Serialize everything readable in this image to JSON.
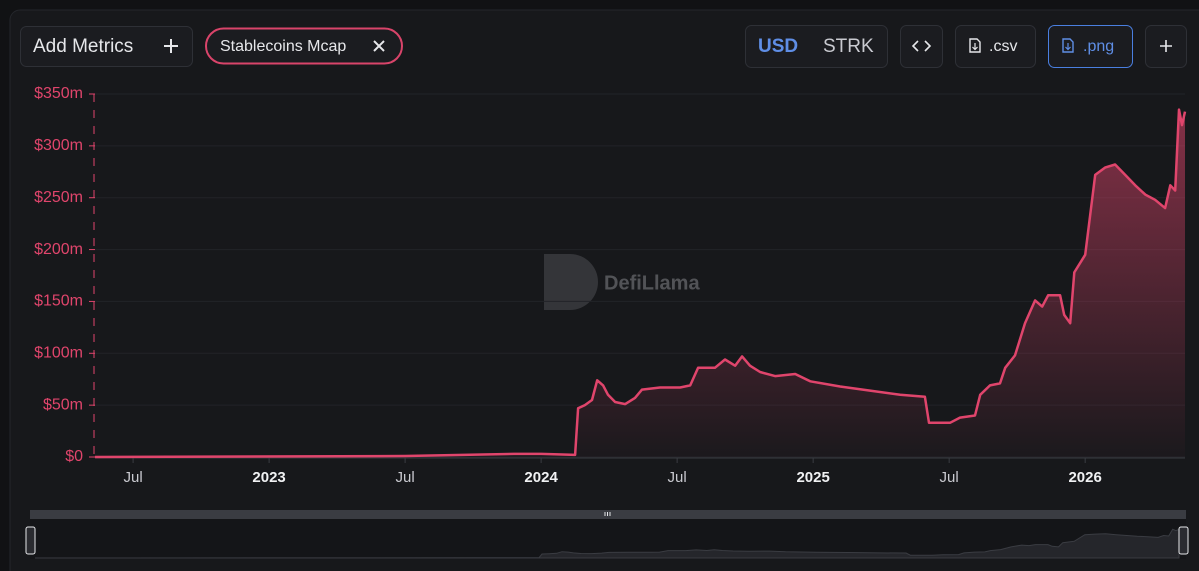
{
  "toolbar": {
    "add_metrics": "Add Metrics",
    "metric_chip": "Stablecoins Mcap",
    "currency_active": "USD",
    "currency_other": "STRK",
    "csv": ".csv",
    "png": ".png"
  },
  "watermark": "DefiLlama",
  "chart_data": {
    "type": "area",
    "color": "#e0456c",
    "grid": true,
    "x": [
      2022.36,
      2023.5,
      2023.9,
      2024.0,
      2024.125,
      2024.136,
      2024.161,
      2024.187,
      2024.206,
      2024.228,
      2024.246,
      2024.272,
      2024.309,
      2024.345,
      2024.371,
      2024.437,
      2024.511,
      2024.548,
      2024.577,
      2024.639,
      2024.676,
      2024.713,
      2024.739,
      2024.768,
      2024.805,
      2024.86,
      2024.934,
      2024.989,
      2025.099,
      2025.209,
      2025.32,
      2025.411,
      2025.426,
      2025.503,
      2025.54,
      2025.595,
      2025.614,
      2025.65,
      2025.687,
      2025.706,
      2025.742,
      2025.779,
      2025.816,
      2025.842,
      2025.864,
      2025.908,
      2025.923,
      2025.945,
      2025.96,
      2026.0,
      2026.037,
      2026.073,
      2026.11,
      2026.147,
      2026.184,
      2026.221,
      2026.257,
      2026.294,
      2026.313,
      2026.331,
      2026.345,
      2026.356,
      2026.367
    ],
    "series": [
      {
        "name": "Stablecoins Mcap",
        "color": "#e0456c",
        "values": [
          0,
          1,
          3,
          3,
          2,
          47,
          50,
          55,
          74,
          69,
          60,
          53,
          51,
          57,
          65,
          67,
          67,
          69,
          86,
          86,
          94,
          88,
          97,
          88,
          82,
          78,
          80,
          73,
          68,
          64,
          60,
          58,
          33,
          33,
          38,
          40,
          60,
          69,
          71,
          86,
          98,
          129,
          151,
          145,
          156,
          156,
          137,
          129,
          178,
          195,
          272,
          279,
          282,
          272,
          262,
          253,
          248,
          240,
          262,
          257,
          335,
          320,
          333
        ]
      }
    ],
    "xlim": [
      2022.36,
      2026.367
    ],
    "xticks": [
      {
        "value": 2022.5,
        "label": "Jul"
      },
      2023,
      {
        "value": 2023.5,
        "label": "Jul"
      },
      2024,
      {
        "value": 2024.5,
        "label": "Jul"
      },
      2025,
      {
        "value": 2025.5,
        "label": "Jul"
      },
      2026
    ],
    "ylim": [
      0,
      350
    ],
    "yticks": [
      {
        "value": 0,
        "label": "$0"
      },
      {
        "value": 50,
        "label": "$50m"
      },
      {
        "value": 100,
        "label": "$100m"
      },
      {
        "value": 150,
        "label": "$150m"
      },
      {
        "value": 200,
        "label": "$200m"
      },
      {
        "value": 250,
        "label": "$250m"
      },
      {
        "value": 300,
        "label": "$300m"
      },
      {
        "value": 350,
        "label": "$350m"
      }
    ]
  }
}
